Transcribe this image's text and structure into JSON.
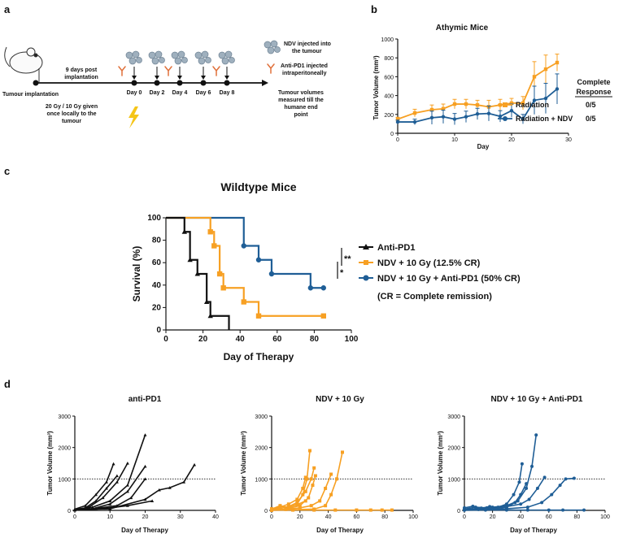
{
  "panels": {
    "a": "a",
    "b": "b",
    "c": "c",
    "d": "d"
  },
  "colors": {
    "black": "#111111",
    "orange": "#F7A023",
    "blue": "#1F5E96",
    "lightning": "#F5C518",
    "antibody": "#E0703A",
    "virus": "#9FB0BE"
  },
  "panel_a": {
    "tumour_implantation": "Tumour implantation",
    "post_implant": [
      "9 days post",
      "implantation"
    ],
    "days": [
      "Day 0",
      "Day 2",
      "Day 4",
      "Day 6",
      "Day 8"
    ],
    "legend_ndv": [
      "NDV injected into",
      "the tumour"
    ],
    "legend_antipd1": [
      "Anti-PD1 injected",
      "intraperitoneally"
    ],
    "radiation_note": [
      "20 Gy / 10 Gy given",
      "once locally to the",
      "tumour"
    ],
    "end_note": [
      "Tumour volumes",
      "measured till the",
      "humane end",
      "point"
    ]
  },
  "chart_data": [
    {
      "id": "b",
      "type": "line",
      "title": "Athymic Mice",
      "xlabel": "Day",
      "ylabel": "Tumor Volume (mm³)",
      "xlim": [
        0,
        30
      ],
      "ylim": [
        0,
        1000
      ],
      "xticks": [
        "0",
        "10",
        "20",
        "30"
      ],
      "yticks": [
        "0",
        "200",
        "400",
        "600",
        "800",
        "1000"
      ],
      "response_header": [
        "Complete",
        "Response"
      ],
      "series": [
        {
          "name": "Radiation",
          "color": "#F7A023",
          "response": "0/5",
          "x": [
            0,
            3,
            6,
            8,
            10,
            12,
            14,
            16,
            18,
            20,
            22,
            24,
            26,
            28
          ],
          "y": [
            150,
            215,
            250,
            260,
            310,
            310,
            300,
            280,
            300,
            320,
            320,
            600,
            680,
            750
          ],
          "err": [
            20,
            40,
            50,
            50,
            50,
            50,
            50,
            70,
            60,
            50,
            70,
            160,
            150,
            90
          ]
        },
        {
          "name": "Radiation + NDV",
          "color": "#1F5E96",
          "response": "0/5",
          "x": [
            0,
            3,
            6,
            8,
            10,
            12,
            14,
            16,
            18,
            20,
            22,
            24,
            26,
            28
          ],
          "y": [
            120,
            120,
            165,
            175,
            150,
            175,
            205,
            210,
            180,
            240,
            150,
            350,
            370,
            470
          ],
          "err": [
            20,
            30,
            70,
            70,
            60,
            60,
            60,
            80,
            60,
            70,
            50,
            150,
            160,
            160
          ]
        }
      ]
    },
    {
      "id": "c",
      "type": "line",
      "title": "Wildtype Mice",
      "xlabel": "Day of Therapy",
      "ylabel": "Survival (%)",
      "xlim": [
        0,
        100
      ],
      "ylim": [
        0,
        100
      ],
      "xticks": [
        "0",
        "20",
        "40",
        "60",
        "80",
        "100"
      ],
      "yticks": [
        "0",
        "20",
        "40",
        "60",
        "80",
        "100"
      ],
      "significance": [
        "**",
        "*"
      ],
      "note": "(CR = Complete remission)",
      "series": [
        {
          "name": "Anti-PD1",
          "color": "#111111",
          "marker": "triangle",
          "x": [
            0,
            10,
            10,
            13,
            13,
            17,
            17,
            22,
            22,
            24,
            24,
            34,
            34
          ],
          "y": [
            100,
            100,
            87.5,
            87.5,
            62.5,
            62.5,
            50,
            50,
            25,
            25,
            12.5,
            12.5,
            0
          ],
          "mx": [
            10,
            13,
            17,
            22,
            24
          ],
          "my": [
            87.5,
            62.5,
            50,
            25,
            12.5
          ]
        },
        {
          "name": "NDV + 10 Gy  (12.5% CR)",
          "color": "#F7A023",
          "marker": "square",
          "x": [
            0,
            24,
            24,
            26,
            26,
            29,
            29,
            31,
            31,
            42,
            42,
            50,
            50,
            85
          ],
          "y": [
            100,
            100,
            87.5,
            87.5,
            75,
            75,
            50,
            50,
            37.5,
            37.5,
            25,
            25,
            12.5,
            12.5
          ],
          "mx": [
            24,
            26,
            29,
            31,
            42,
            50,
            85
          ],
          "my": [
            87.5,
            75,
            50,
            37.5,
            25,
            12.5,
            12.5
          ]
        },
        {
          "name": "NDV + 10 Gy + Anti-PD1  (50% CR)",
          "color": "#1F5E96",
          "marker": "circle",
          "x": [
            0,
            42,
            42,
            50,
            50,
            57,
            57,
            78,
            78,
            85
          ],
          "y": [
            100,
            100,
            75,
            75,
            62.5,
            62.5,
            50,
            50,
            37.5,
            37.5
          ],
          "mx": [
            42,
            50,
            57,
            78,
            85
          ],
          "my": [
            75,
            62.5,
            50,
            37.5,
            37.5
          ]
        }
      ]
    },
    {
      "id": "d1",
      "type": "line",
      "title": "anti-PD1",
      "xlabel": "Day of Therapy",
      "ylabel": "Tumor Volume (mm³)",
      "xlim": [
        0,
        40
      ],
      "ylim": [
        0,
        3000
      ],
      "threshold": 1000,
      "xticks": [
        "0",
        "10",
        "20",
        "30",
        "40"
      ],
      "yticks": [
        "0",
        "1000",
        "2000",
        "3000"
      ],
      "color": "#111111",
      "marker": "triangle",
      "series": [
        {
          "x": [
            0,
            3,
            6,
            9,
            11
          ],
          "y": [
            40,
            150,
            500,
            900,
            1480
          ]
        },
        {
          "x": [
            0,
            3,
            6,
            9,
            12
          ],
          "y": [
            20,
            80,
            300,
            700,
            1100
          ]
        },
        {
          "x": [
            0,
            4,
            8,
            12,
            15
          ],
          "y": [
            20,
            100,
            400,
            900,
            1500
          ]
        },
        {
          "x": [
            0,
            5,
            10,
            15,
            20
          ],
          "y": [
            30,
            100,
            300,
            800,
            2400
          ]
        },
        {
          "x": [
            0,
            5,
            10,
            15,
            20
          ],
          "y": [
            10,
            50,
            200,
            600,
            1400
          ]
        },
        {
          "x": [
            0,
            6,
            12,
            16,
            20
          ],
          "y": [
            20,
            60,
            150,
            400,
            1000
          ]
        },
        {
          "x": [
            0,
            10,
            20,
            24,
            27,
            31,
            34
          ],
          "y": [
            20,
            50,
            350,
            650,
            720,
            900,
            1450
          ]
        },
        {
          "x": [
            0,
            5,
            10,
            15,
            22
          ],
          "y": [
            10,
            30,
            80,
            150,
            300
          ]
        }
      ]
    },
    {
      "id": "d2",
      "type": "line",
      "title": "NDV + 10 Gy",
      "xlabel": "Day of Therapy",
      "ylabel": "Tumor Volume (mm³)",
      "xlim": [
        0,
        100
      ],
      "ylim": [
        0,
        3000
      ],
      "threshold": 1000,
      "xticks": [
        "0",
        "20",
        "40",
        "60",
        "80",
        "100"
      ],
      "yticks": [
        "0",
        "1000",
        "2000",
        "3000"
      ],
      "color": "#F7A023",
      "marker": "square",
      "series": [
        {
          "x": [
            0,
            6,
            12,
            18,
            22,
            25,
            27
          ],
          "y": [
            40,
            150,
            80,
            200,
            500,
            1000,
            1900
          ]
        },
        {
          "x": [
            0,
            6,
            12,
            18,
            22,
            24
          ],
          "y": [
            20,
            100,
            200,
            350,
            700,
            1050
          ]
        },
        {
          "x": [
            0,
            6,
            12,
            18,
            24,
            28,
            30
          ],
          "y": [
            10,
            60,
            120,
            250,
            600,
            1000,
            1350
          ]
        },
        {
          "x": [
            0,
            10,
            20,
            26,
            29,
            31
          ],
          "y": [
            10,
            40,
            150,
            400,
            800,
            1100
          ]
        },
        {
          "x": [
            0,
            10,
            20,
            28,
            34,
            38,
            42
          ],
          "y": [
            10,
            30,
            80,
            150,
            300,
            700,
            1150
          ]
        },
        {
          "x": [
            0,
            15,
            30,
            38,
            42,
            46,
            50
          ],
          "y": [
            10,
            20,
            40,
            150,
            500,
            1000,
            1850
          ]
        },
        {
          "x": [
            0,
            15,
            30,
            45,
            60,
            70,
            78,
            85
          ],
          "y": [
            5,
            10,
            10,
            10,
            10,
            10,
            10,
            10
          ]
        },
        {
          "x": [
            0,
            6,
            12,
            18,
            24
          ],
          "y": [
            50,
            120,
            100,
            180,
            300
          ]
        }
      ]
    },
    {
      "id": "d3",
      "type": "line",
      "title": "NDV + 10 Gy + Anti-PD1",
      "xlabel": "Day of Therapy",
      "ylabel": "Tumor Volume (mm³)",
      "xlim": [
        0,
        100
      ],
      "ylim": [
        0,
        3000
      ],
      "threshold": 1000,
      "xticks": [
        "0",
        "20",
        "40",
        "60",
        "80",
        "100"
      ],
      "yticks": [
        "0",
        "1000",
        "2000",
        "3000"
      ],
      "color": "#1F5E96",
      "marker": "circle",
      "series": [
        {
          "x": [
            0,
            8,
            16,
            24,
            30,
            35,
            39,
            41
          ],
          "y": [
            40,
            100,
            80,
            100,
            200,
            500,
            900,
            1480
          ]
        },
        {
          "x": [
            0,
            10,
            20,
            30,
            38,
            44,
            48,
            51
          ],
          "y": [
            20,
            60,
            100,
            150,
            300,
            700,
            1400,
            2400
          ]
        },
        {
          "x": [
            0,
            10,
            20,
            30,
            40,
            46,
            52,
            57
          ],
          "y": [
            10,
            40,
            80,
            120,
            200,
            350,
            700,
            1050
          ]
        },
        {
          "x": [
            0,
            15,
            30,
            45,
            55,
            62,
            68,
            72,
            78
          ],
          "y": [
            10,
            20,
            50,
            100,
            250,
            500,
            800,
            1000,
            1020
          ]
        },
        {
          "x": [
            0,
            10,
            20,
            30,
            36,
            40,
            44
          ],
          "y": [
            10,
            30,
            50,
            100,
            250,
            500,
            850
          ]
        },
        {
          "x": [
            0,
            15,
            30,
            45,
            60,
            70,
            85
          ],
          "y": [
            5,
            10,
            10,
            10,
            10,
            10,
            10
          ]
        },
        {
          "x": [
            0,
            6,
            12,
            18
          ],
          "y": [
            80,
            130,
            70,
            120
          ]
        }
      ]
    }
  ]
}
